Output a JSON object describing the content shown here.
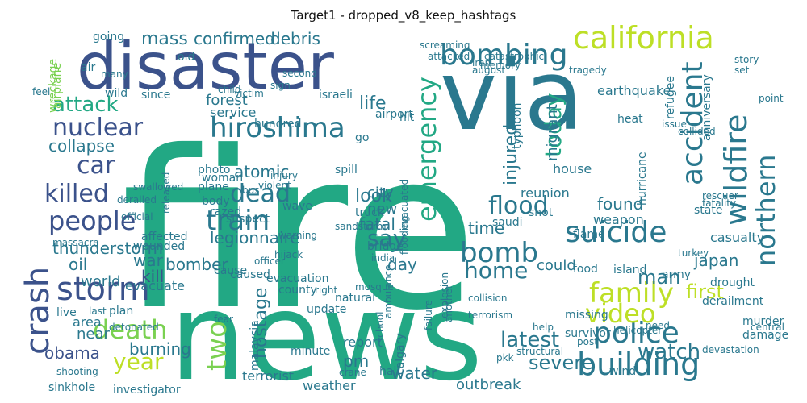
{
  "chart_data": {
    "type": "wordcloud",
    "title": "Target1 - dropped_v8_keep_hashtags",
    "palette": "viridis",
    "words": [
      {
        "text": "fire",
        "weight": 1.0,
        "color": "#22a884"
      },
      {
        "text": "news",
        "weight": 0.78,
        "color": "#22a884"
      },
      {
        "text": "via",
        "weight": 0.62,
        "color": "#2a788e"
      },
      {
        "text": "disaster",
        "weight": 0.5,
        "color": "#3b528b"
      },
      {
        "text": "california",
        "weight": 0.3,
        "color": "#bddf26"
      },
      {
        "text": "suicide",
        "weight": 0.3,
        "color": "#2a788e"
      },
      {
        "text": "building",
        "weight": 0.3,
        "color": "#2a788e"
      },
      {
        "text": "police",
        "weight": 0.3,
        "color": "#2a788e"
      },
      {
        "text": "bombing",
        "weight": 0.28,
        "color": "#2a788e"
      },
      {
        "text": "accident",
        "weight": 0.28,
        "color": "#2a788e"
      },
      {
        "text": "hiroshima",
        "weight": 0.28,
        "color": "#2a788e"
      },
      {
        "text": "people",
        "weight": 0.28,
        "color": "#3b528b"
      },
      {
        "text": "storm",
        "weight": 0.28,
        "color": "#3b528b"
      },
      {
        "text": "family",
        "weight": 0.26,
        "color": "#bddf26"
      },
      {
        "text": "killed",
        "weight": 0.26,
        "color": "#3b528b"
      },
      {
        "text": "train",
        "weight": 0.26,
        "color": "#2a788e"
      },
      {
        "text": "flood",
        "weight": 0.25,
        "color": "#2a788e"
      },
      {
        "text": "wildfire",
        "weight": 0.25,
        "color": "#2a788e"
      },
      {
        "text": "bomb",
        "weight": 0.25,
        "color": "#2a788e"
      },
      {
        "text": "death",
        "weight": 0.25,
        "color": "#7ad151"
      },
      {
        "text": "home",
        "weight": 0.25,
        "color": "#2a788e"
      },
      {
        "text": "video",
        "weight": 0.25,
        "color": "#bddf26"
      },
      {
        "text": "emergency",
        "weight": 0.24,
        "color": "#22a884"
      },
      {
        "text": "crash",
        "weight": 0.24,
        "color": "#3b528b"
      },
      {
        "text": "dead",
        "weight": 0.23,
        "color": "#2a788e"
      },
      {
        "text": "year",
        "weight": 0.23,
        "color": "#bddf26"
      },
      {
        "text": "two",
        "weight": 0.23,
        "color": "#7ad151"
      },
      {
        "text": "nuclear",
        "weight": 0.22,
        "color": "#3b528b"
      },
      {
        "text": "attack",
        "weight": 0.22,
        "color": "#22a884"
      },
      {
        "text": "northern",
        "weight": 0.22,
        "color": "#2a788e"
      },
      {
        "text": "say",
        "weight": 0.22,
        "color": "#2a788e"
      },
      {
        "text": "car",
        "weight": 0.2,
        "color": "#3b528b"
      },
      {
        "text": "today",
        "weight": 0.2,
        "color": "#22a884"
      },
      {
        "text": "latest",
        "weight": 0.2,
        "color": "#2a788e"
      },
      {
        "text": "watch",
        "weight": 0.18,
        "color": "#2a788e"
      },
      {
        "text": "man",
        "weight": 0.18,
        "color": "#2a788e"
      },
      {
        "text": "first",
        "weight": 0.18,
        "color": "#bddf26"
      },
      {
        "text": "severe",
        "weight": 0.16,
        "color": "#2a788e"
      },
      {
        "text": "injured",
        "weight": 0.16,
        "color": "#2a788e"
      },
      {
        "text": "mass",
        "weight": 0.15,
        "color": "#2a788e"
      },
      {
        "text": "confirmed",
        "weight": 0.15,
        "color": "#2a788e"
      },
      {
        "text": "debris",
        "weight": 0.14,
        "color": "#2a788e"
      },
      {
        "text": "collapse",
        "weight": 0.15,
        "color": "#2a788e"
      },
      {
        "text": "legionnaire",
        "weight": 0.15,
        "color": "#2a788e"
      },
      {
        "text": "thunderstorm",
        "weight": 0.15,
        "color": "#2a788e"
      },
      {
        "text": "bomber",
        "weight": 0.14,
        "color": "#2a788e"
      },
      {
        "text": "obama",
        "weight": 0.14,
        "color": "#3b528b"
      },
      {
        "text": "hostage",
        "weight": 0.14,
        "color": "#2a788e"
      },
      {
        "text": "burning",
        "weight": 0.14,
        "color": "#2a788e"
      },
      {
        "text": "water",
        "weight": 0.13,
        "color": "#2a788e"
      },
      {
        "text": "forest",
        "weight": 0.13,
        "color": "#2a788e"
      },
      {
        "text": "look",
        "weight": 0.13,
        "color": "#2a788e"
      },
      {
        "text": "atomic",
        "weight": 0.13,
        "color": "#2a788e"
      },
      {
        "text": "fatal",
        "weight": 0.13,
        "color": "#2a788e"
      },
      {
        "text": "found",
        "weight": 0.13,
        "color": "#2a788e"
      },
      {
        "text": "new",
        "weight": 0.13,
        "color": "#2a788e"
      },
      {
        "text": "city",
        "weight": 0.13,
        "color": "#2a788e"
      },
      {
        "text": "time",
        "weight": 0.13,
        "color": "#2a788e"
      },
      {
        "text": "war",
        "weight": 0.13,
        "color": "#2a788e"
      },
      {
        "text": "oil",
        "weight": 0.13,
        "color": "#2a788e"
      },
      {
        "text": "kill",
        "weight": 0.13,
        "color": "#3b528b"
      },
      {
        "text": "world",
        "weight": 0.12,
        "color": "#2a788e"
      },
      {
        "text": "day",
        "weight": 0.12,
        "color": "#2a788e"
      },
      {
        "text": "pm",
        "weight": 0.12,
        "color": "#2a788e"
      },
      {
        "text": "japan",
        "weight": 0.12,
        "color": "#2a788e"
      },
      {
        "text": "could",
        "weight": 0.11,
        "color": "#2a788e"
      },
      {
        "text": "life",
        "weight": 0.12,
        "color": "#2a788e"
      },
      {
        "text": "migrant",
        "weight": 0.11,
        "color": "#2a788e"
      },
      {
        "text": "near",
        "weight": 0.11,
        "color": "#2a788e"
      },
      {
        "text": "area",
        "weight": 0.11,
        "color": "#2a788e"
      },
      {
        "text": "weapon",
        "weight": 0.1,
        "color": "#2a788e"
      },
      {
        "text": "casualty",
        "weight": 0.1,
        "color": "#2a788e"
      },
      {
        "text": "reunion",
        "weight": 0.1,
        "color": "#2a788e"
      },
      {
        "text": "house",
        "weight": 0.1,
        "color": "#2a788e"
      },
      {
        "text": "earthquake",
        "weight": 0.1,
        "color": "#2a788e"
      },
      {
        "text": "service",
        "weight": 0.1,
        "color": "#2a788e"
      },
      {
        "text": "evacuate",
        "weight": 0.1,
        "color": "#2a788e"
      },
      {
        "text": "terrorist",
        "weight": 0.1,
        "color": "#2a788e"
      },
      {
        "text": "weather",
        "weight": 0.1,
        "color": "#2a788e"
      },
      {
        "text": "outbreak",
        "weight": 0.1,
        "color": "#2a788e"
      },
      {
        "text": "report",
        "weight": 0.1,
        "color": "#2a788e"
      },
      {
        "text": "minute",
        "weight": 0.09,
        "color": "#2a788e"
      },
      {
        "text": "sinkhole",
        "weight": 0.09,
        "color": "#2a788e"
      },
      {
        "text": "investigator",
        "weight": 0.09,
        "color": "#2a788e"
      },
      {
        "text": "state",
        "weight": 0.09,
        "color": "#2a788e"
      },
      {
        "text": "army",
        "weight": 0.09,
        "color": "#2a788e"
      },
      {
        "text": "island",
        "weight": 0.09,
        "color": "#2a788e"
      },
      {
        "text": "drought",
        "weight": 0.09,
        "color": "#2a788e"
      },
      {
        "text": "derailment",
        "weight": 0.09,
        "color": "#2a788e"
      },
      {
        "text": "wreckage",
        "weight": 0.09,
        "color": "#7ad151"
      },
      {
        "text": "airplane",
        "weight": 0.09,
        "color": "#7ad151"
      },
      {
        "text": "going",
        "weight": 0.09,
        "color": "#2a788e"
      },
      {
        "text": "wave",
        "weight": 0.08,
        "color": "#2a788e"
      },
      {
        "text": "caused",
        "weight": 0.08,
        "color": "#2a788e"
      },
      {
        "text": "evacuation",
        "weight": 0.08,
        "color": "#2a788e"
      },
      {
        "text": "county",
        "weight": 0.08,
        "color": "#2a788e"
      },
      {
        "text": "update",
        "weight": 0.08,
        "color": "#2a788e"
      },
      {
        "text": "natural",
        "weight": 0.08,
        "color": "#2a788e"
      },
      {
        "text": "hurricane",
        "weight": 0.08,
        "color": "#2a788e"
      },
      {
        "text": "wind",
        "weight": 0.08,
        "color": "#2a788e"
      },
      {
        "text": "damage",
        "weight": 0.08,
        "color": "#2a788e"
      },
      {
        "text": "murder",
        "weight": 0.08,
        "color": "#2a788e"
      },
      {
        "text": "typhoon",
        "weight": 0.08,
        "color": "#2a788e"
      },
      {
        "text": "plane",
        "weight": 0.08,
        "color": "#2a788e"
      },
      {
        "text": "body",
        "weight": 0.07,
        "color": "#2a788e"
      },
      {
        "text": "woman",
        "weight": 0.07,
        "color": "#2a788e"
      },
      {
        "text": "photo",
        "weight": 0.07,
        "color": "#2a788e"
      },
      {
        "text": "suspect",
        "weight": 0.07,
        "color": "#2a788e"
      },
      {
        "text": "heat",
        "weight": 0.07,
        "color": "#2a788e"
      },
      {
        "text": "issue",
        "weight": 0.07,
        "color": "#2a788e"
      },
      {
        "text": "refugee",
        "weight": 0.07,
        "color": "#2a788e"
      },
      {
        "text": "flame",
        "weight": 0.07,
        "color": "#2a788e"
      },
      {
        "text": "razed",
        "weight": 0.07,
        "color": "#2a788e"
      },
      {
        "text": "wounded",
        "weight": 0.07,
        "color": "#2a788e"
      },
      {
        "text": "affected",
        "weight": 0.07,
        "color": "#2a788e"
      },
      {
        "text": "survivor",
        "weight": 0.07,
        "color": "#2a788e"
      },
      {
        "text": "calgary",
        "weight": 0.07,
        "color": "#2a788e"
      },
      {
        "text": "malaysia",
        "weight": 0.07,
        "color": "#2a788e"
      },
      {
        "text": "saudi",
        "weight": 0.07,
        "color": "#2a788e"
      },
      {
        "text": "truck",
        "weight": 0.07,
        "color": "#2a788e"
      },
      {
        "text": "bridge",
        "weight": 0.07,
        "color": "#2a788e"
      },
      {
        "text": "spill",
        "weight": 0.07,
        "color": "#2a788e"
      },
      {
        "text": "shot",
        "weight": 0.07,
        "color": "#2a788e"
      },
      {
        "text": "massacre",
        "weight": 0.06,
        "color": "#2a788e"
      },
      {
        "text": "sandstorm",
        "weight": 0.06,
        "color": "#2a788e"
      },
      {
        "text": "mosque",
        "weight": 0.06,
        "color": "#2a788e"
      },
      {
        "text": "school",
        "weight": 0.06,
        "color": "#2a788e"
      },
      {
        "text": "missing",
        "weight": 0.06,
        "color": "#2a788e"
      },
      {
        "text": "cause",
        "weight": 0.06,
        "color": "#2a788e"
      },
      {
        "text": "food",
        "weight": 0.06,
        "color": "#2a788e"
      },
      {
        "text": "hail",
        "weight": 0.06,
        "color": "#2a788e"
      },
      {
        "text": "live",
        "weight": 0.06,
        "color": "#2a788e"
      },
      {
        "text": "last",
        "weight": 0.06,
        "color": "#2a788e"
      },
      {
        "text": "plan",
        "weight": 0.06,
        "color": "#2a788e"
      },
      {
        "text": "hit",
        "weight": 0.06,
        "color": "#2a788e"
      },
      {
        "text": "hundred",
        "weight": 0.06,
        "color": "#2a788e"
      },
      {
        "text": "go",
        "weight": 0.06,
        "color": "#2a788e"
      },
      {
        "text": "officer",
        "weight": 0.06,
        "color": "#2a788e"
      },
      {
        "text": "turkey",
        "weight": 0.06,
        "color": "#2a788e"
      },
      {
        "text": "air",
        "weight": 0.06,
        "color": "#2a788e"
      },
      {
        "text": "many",
        "weight": 0.06,
        "color": "#2a788e"
      },
      {
        "text": "wild",
        "weight": 0.06,
        "color": "#2a788e"
      },
      {
        "text": "since",
        "weight": 0.06,
        "color": "#2a788e"
      },
      {
        "text": "old",
        "weight": 0.06,
        "color": "#2a788e"
      },
      {
        "text": "child",
        "weight": 0.06,
        "color": "#2a788e"
      },
      {
        "text": "israeli",
        "weight": 0.06,
        "color": "#2a788e"
      },
      {
        "text": "airport",
        "weight": 0.06,
        "color": "#2a788e"
      },
      {
        "text": "attacked",
        "weight": 0.05,
        "color": "#2a788e"
      },
      {
        "text": "catastrophic",
        "weight": 0.05,
        "color": "#2a788e"
      },
      {
        "text": "iran",
        "weight": 0.05,
        "color": "#2a788e"
      },
      {
        "text": "august",
        "weight": 0.05,
        "color": "#2a788e"
      },
      {
        "text": "memory",
        "weight": 0.05,
        "color": "#2a788e"
      },
      {
        "text": "tragedy",
        "weight": 0.05,
        "color": "#2a788e"
      },
      {
        "text": "anniversary",
        "weight": 0.05,
        "color": "#2a788e"
      },
      {
        "text": "set",
        "weight": 0.05,
        "color": "#2a788e"
      },
      {
        "text": "story",
        "weight": 0.05,
        "color": "#2a788e"
      },
      {
        "text": "point",
        "weight": 0.05,
        "color": "#2a788e"
      },
      {
        "text": "fatality",
        "weight": 0.05,
        "color": "#2a788e"
      },
      {
        "text": "rescuer",
        "weight": 0.05,
        "color": "#2a788e"
      },
      {
        "text": "collided",
        "weight": 0.05,
        "color": "#2a788e"
      },
      {
        "text": "released",
        "weight": 0.05,
        "color": "#2a788e"
      },
      {
        "text": "swallowed",
        "weight": 0.05,
        "color": "#2a788e"
      },
      {
        "text": "derailed",
        "weight": 0.05,
        "color": "#2a788e"
      },
      {
        "text": "official",
        "weight": 0.05,
        "color": "#2a788e"
      },
      {
        "text": "violent",
        "weight": 0.05,
        "color": "#2a788e"
      },
      {
        "text": "injury",
        "weight": 0.05,
        "color": "#2a788e"
      },
      {
        "text": "warning",
        "weight": 0.05,
        "color": "#2a788e"
      },
      {
        "text": "flooding",
        "weight": 0.05,
        "color": "#2a788e"
      },
      {
        "text": "evacuated",
        "weight": 0.05,
        "color": "#2a788e"
      },
      {
        "text": "explosion",
        "weight": 0.05,
        "color": "#2a788e"
      },
      {
        "text": "terrorism",
        "weight": 0.05,
        "color": "#2a788e"
      },
      {
        "text": "ambulance",
        "weight": 0.05,
        "color": "#2a788e"
      },
      {
        "text": "failure",
        "weight": 0.05,
        "color": "#2a788e"
      },
      {
        "text": "another",
        "weight": 0.05,
        "color": "#2a788e"
      },
      {
        "text": "india",
        "weight": 0.05,
        "color": "#2a788e"
      },
      {
        "text": "detonated",
        "weight": 0.05,
        "color": "#2a788e"
      },
      {
        "text": "shooting",
        "weight": 0.05,
        "color": "#2a788e"
      },
      {
        "text": "structural",
        "weight": 0.05,
        "color": "#2a788e"
      },
      {
        "text": "helicopter",
        "weight": 0.05,
        "color": "#2a788e"
      },
      {
        "text": "devastation",
        "weight": 0.05,
        "color": "#2a788e"
      },
      {
        "text": "pkk",
        "weight": 0.05,
        "color": "#2a788e"
      },
      {
        "text": "collision",
        "weight": 0.05,
        "color": "#2a788e"
      },
      {
        "text": "help",
        "weight": 0.05,
        "color": "#2a788e"
      },
      {
        "text": "post",
        "weight": 0.05,
        "color": "#2a788e"
      },
      {
        "text": "need",
        "weight": 0.05,
        "color": "#2a788e"
      },
      {
        "text": "central",
        "weight": 0.05,
        "color": "#2a788e"
      },
      {
        "text": "sign",
        "weight": 0.05,
        "color": "#2a788e"
      },
      {
        "text": "second",
        "weight": 0.05,
        "color": "#2a788e"
      },
      {
        "text": "victim",
        "weight": 0.05,
        "color": "#2a788e"
      },
      {
        "text": "feel",
        "weight": 0.05,
        "color": "#2a788e"
      },
      {
        "text": "screaming",
        "weight": 0.05,
        "color": "#2a788e"
      },
      {
        "text": "hijack",
        "weight": 0.05,
        "color": "#2a788e"
      },
      {
        "text": "fear",
        "weight": 0.05,
        "color": "#2a788e"
      },
      {
        "text": "right",
        "weight": 0.05,
        "color": "#2a788e"
      },
      {
        "text": "crane",
        "weight": 0.05,
        "color": "#2a788e"
      },
      {
        "text": "bus",
        "weight": 0.05,
        "color": "#2a788e"
      }
    ]
  }
}
